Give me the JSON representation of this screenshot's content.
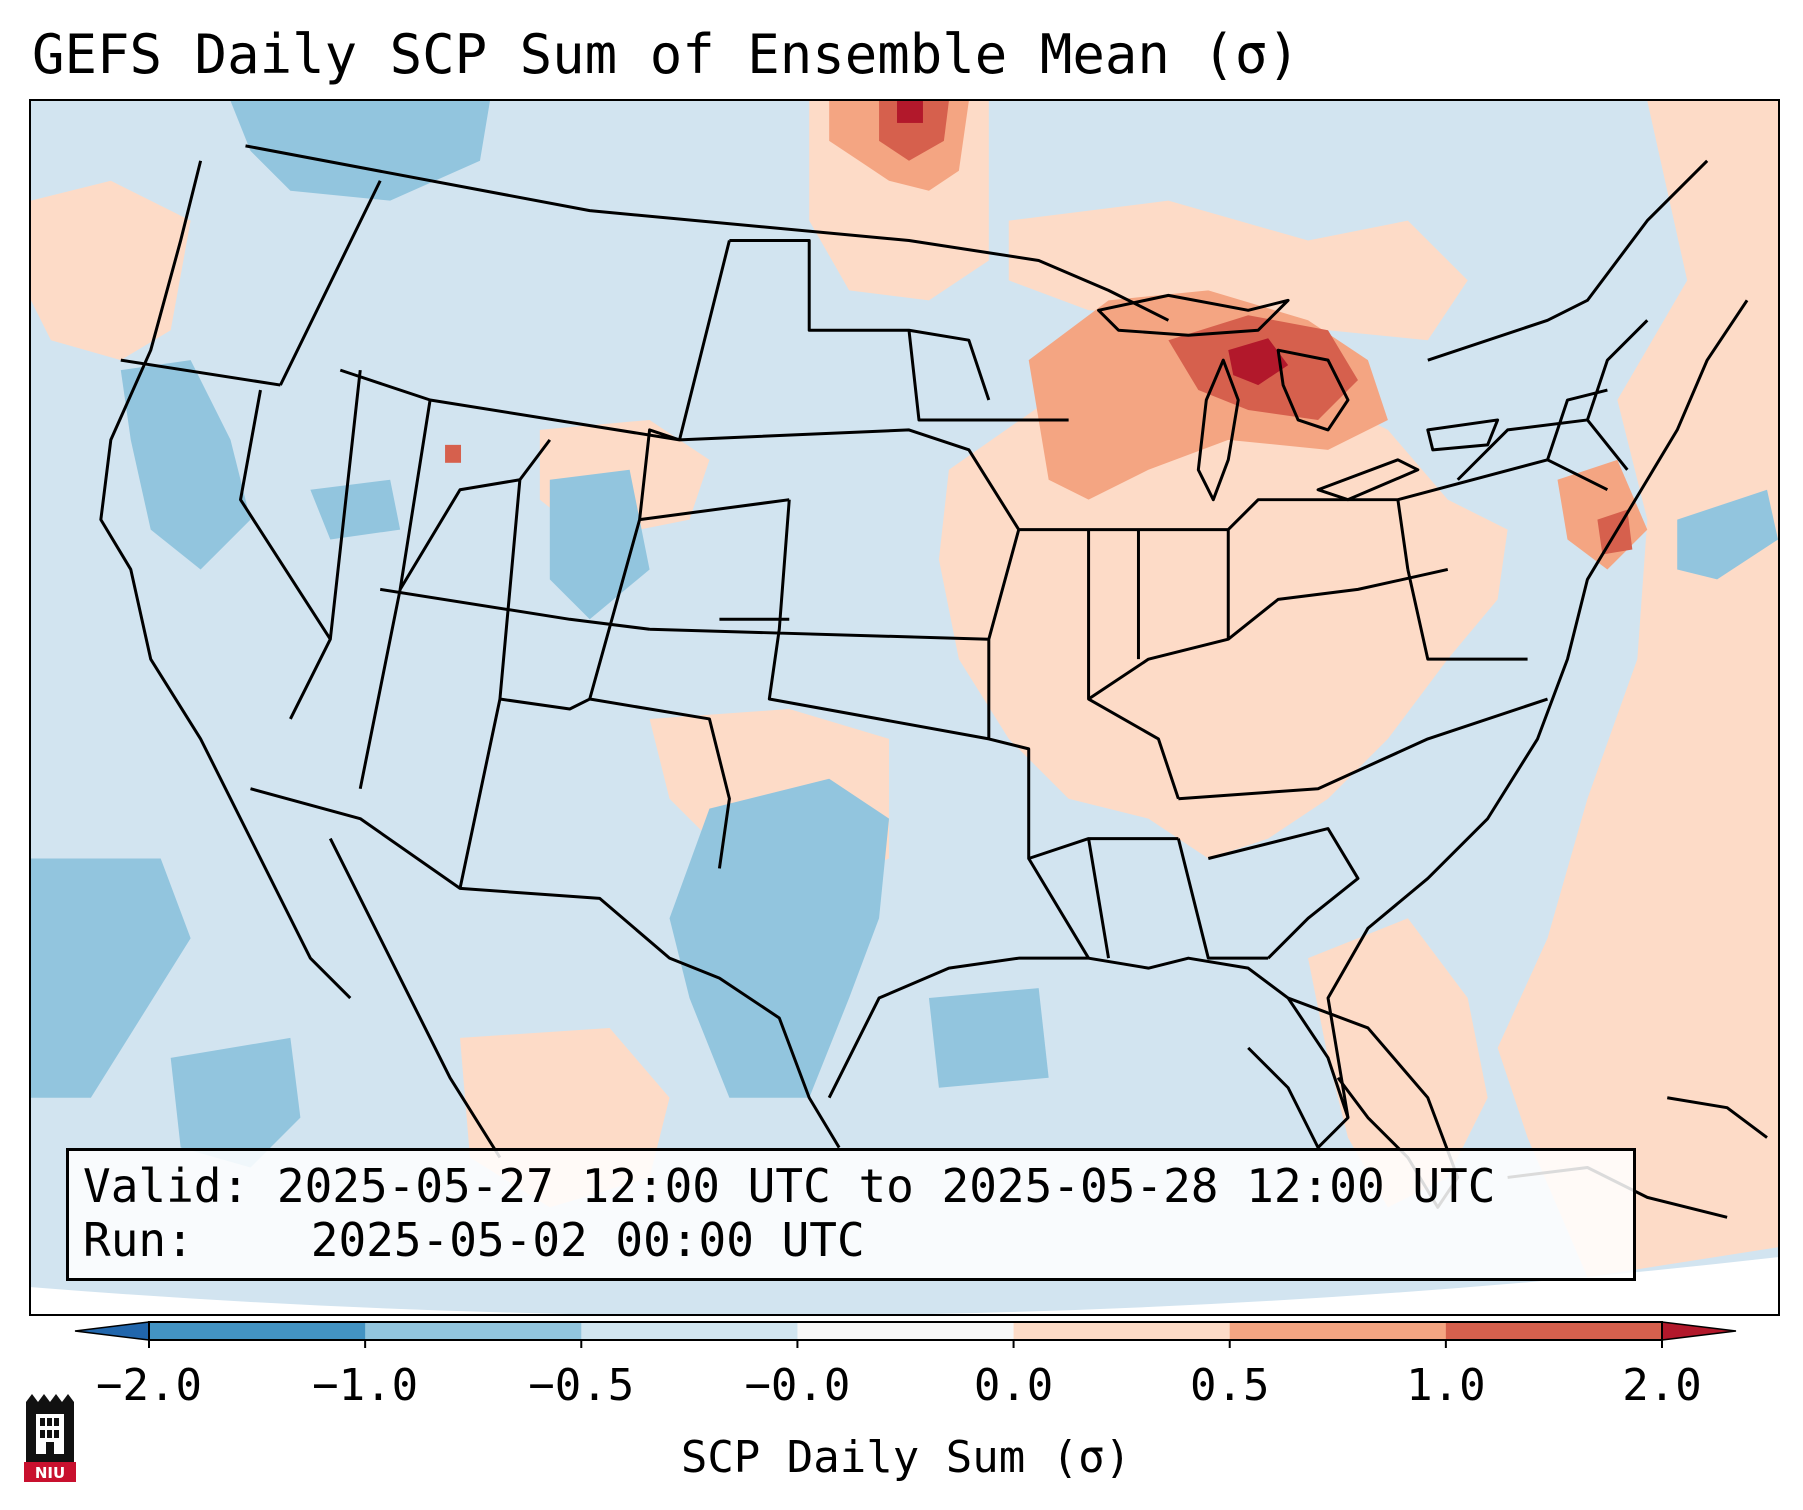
{
  "title": "GEFS Daily SCP Sum of Ensemble Mean (σ)",
  "info": {
    "valid_label": "Valid:",
    "valid_value": "2025-05-27 12:00 UTC to 2025-05-28 12:00 UTC",
    "run_label": "Run:",
    "run_value": "2025-05-02 00:00 UTC"
  },
  "colorbar": {
    "label": "SCP Daily Sum (σ)",
    "ticks": [
      "−2.0",
      "−1.0",
      "−0.5",
      "−0.0",
      "0.0",
      "0.5",
      "1.0",
      "2.0"
    ],
    "bins": [
      {
        "from": "-2.0",
        "to": "-1.0",
        "color": "#4393c3"
      },
      {
        "from": "-1.0",
        "to": "-0.5",
        "color": "#92c5de"
      },
      {
        "from": "-0.5",
        "to": "-0.0",
        "color": "#d1e5f0"
      },
      {
        "from": "-0.0",
        "to": "0.0",
        "color": "#f7f7f7"
      },
      {
        "from": "0.0",
        "to": "0.5",
        "color": "#fddbc7"
      },
      {
        "from": "0.5",
        "to": "1.0",
        "color": "#f4a582"
      },
      {
        "from": "1.0",
        "to": "2.0",
        "color": "#d6604d"
      }
    ],
    "under_color": "#2166ac",
    "over_color": "#b2182b"
  },
  "map": {
    "background_color": "#d2e4f0",
    "boundary_color": "#000000",
    "anomaly_regions": [
      {
        "name": "great-lakes-region",
        "level": "1.0 to 2.0",
        "color": "#d6604d"
      },
      {
        "name": "upper-midwest",
        "level": "0.5 to 1.0",
        "color": "#f4a582"
      },
      {
        "name": "ohio-valley",
        "level": "0.0 to 0.5",
        "color": "#fddbc7"
      },
      {
        "name": "north-dakota-canada",
        "level": "1.0 to 2.0",
        "color": "#d6604d"
      },
      {
        "name": "atlantic-offshore",
        "level": "0.0 to 0.5",
        "color": "#fddbc7"
      },
      {
        "name": "west-texas",
        "level": "-1.0 to -0.5",
        "color": "#92c5de"
      },
      {
        "name": "pacific-offshore",
        "level": "-1.0 to -0.5",
        "color": "#92c5de"
      }
    ],
    "logo": {
      "icon": "niu-logo-icon",
      "text": "NIU",
      "color": "#c8102e"
    }
  }
}
